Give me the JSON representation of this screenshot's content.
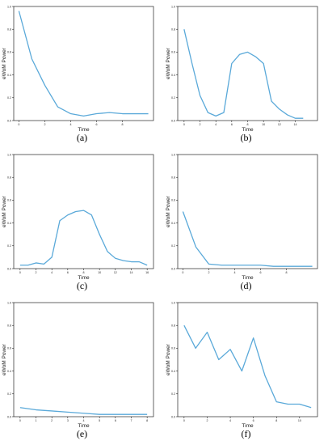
{
  "chart_data": [
    {
      "type": "line",
      "caption": "(a)",
      "xlabel": "Time",
      "ylabel": "eWoM Power",
      "xlim": [
        -0.4,
        10.4
      ],
      "ylim": [
        0,
        1.0
      ],
      "xticks": [
        0,
        2,
        4,
        6,
        8
      ],
      "xticklabels": [
        "0",
        "2",
        "4",
        "6",
        "8"
      ],
      "yticks": [
        0,
        0.2,
        0.4,
        0.6,
        0.8,
        1.0
      ],
      "yticklabels": [
        "0.0",
        "0.2",
        "0.4",
        "0.6",
        "0.8",
        "1.0"
      ],
      "series": [
        {
          "x": [
            0,
            1,
            2,
            3,
            4,
            5,
            6,
            7,
            8,
            9,
            10
          ],
          "y": [
            0.96,
            0.54,
            0.31,
            0.12,
            0.06,
            0.04,
            0.06,
            0.07,
            0.06,
            0.06,
            0.06
          ]
        }
      ]
    },
    {
      "type": "line",
      "caption": "(b)",
      "xlabel": "Time",
      "ylabel": "eWoM Power",
      "xlim": [
        -0.8,
        16.8
      ],
      "ylim": [
        0,
        1.0
      ],
      "xticks": [
        0,
        2,
        4,
        6,
        8,
        10,
        12,
        14
      ],
      "xticklabels": [
        "0",
        "2",
        "4",
        "6",
        "8",
        "10",
        "12",
        "14"
      ],
      "yticks": [
        0,
        0.2,
        0.4,
        0.6,
        0.8,
        1.0
      ],
      "yticklabels": [
        "0.0",
        "0.2",
        "0.4",
        "0.6",
        "0.8",
        "1.0"
      ],
      "series": [
        {
          "x": [
            0,
            1,
            2,
            3,
            4,
            5,
            6,
            7,
            8,
            9,
            10,
            11,
            12,
            13,
            14,
            15
          ],
          "y": [
            0.8,
            0.5,
            0.22,
            0.07,
            0.04,
            0.07,
            0.5,
            0.58,
            0.6,
            0.56,
            0.5,
            0.17,
            0.1,
            0.05,
            0.02,
            0.02
          ]
        }
      ]
    },
    {
      "type": "line",
      "caption": "(c)",
      "xlabel": "Time",
      "ylabel": "eWoM Power",
      "xlim": [
        -0.8,
        16.8
      ],
      "ylim": [
        0,
        1.0
      ],
      "xticks": [
        0,
        2,
        4,
        6,
        8,
        10,
        12,
        14,
        16
      ],
      "xticklabels": [
        "0",
        "2",
        "4",
        "6",
        "8",
        "10",
        "12",
        "14",
        "16"
      ],
      "yticks": [
        0,
        0.2,
        0.4,
        0.6,
        0.8,
        1.0
      ],
      "yticklabels": [
        "0.0",
        "0.2",
        "0.4",
        "0.6",
        "0.8",
        "1.0"
      ],
      "series": [
        {
          "x": [
            0,
            1,
            2,
            3,
            4,
            5,
            6,
            7,
            8,
            9,
            10,
            11,
            12,
            13,
            14,
            15,
            16
          ],
          "y": [
            0.03,
            0.03,
            0.05,
            0.04,
            0.1,
            0.42,
            0.47,
            0.5,
            0.51,
            0.47,
            0.3,
            0.15,
            0.09,
            0.07,
            0.06,
            0.06,
            0.03
          ]
        }
      ]
    },
    {
      "type": "line",
      "caption": "(d)",
      "xlabel": "Time",
      "ylabel": "eWoM Power",
      "xlim": [
        -0.4,
        10.4
      ],
      "ylim": [
        0,
        1.0
      ],
      "xticks": [
        0,
        2,
        4,
        6,
        8
      ],
      "xticklabels": [
        "0",
        "2",
        "4",
        "6",
        "8"
      ],
      "yticks": [
        0,
        0.2,
        0.4,
        0.6,
        0.8,
        1.0
      ],
      "yticklabels": [
        "0.0",
        "0.2",
        "0.4",
        "0.6",
        "0.8",
        "1.0"
      ],
      "series": [
        {
          "x": [
            0,
            1,
            2,
            3,
            4,
            5,
            6,
            7,
            8,
            9,
            10
          ],
          "y": [
            0.5,
            0.19,
            0.04,
            0.03,
            0.03,
            0.03,
            0.03,
            0.02,
            0.02,
            0.02,
            0.02
          ]
        }
      ]
    },
    {
      "type": "line",
      "caption": "(e)",
      "xlabel": "Time",
      "ylabel": "eWoM Power",
      "xlim": [
        -0.4,
        8.4
      ],
      "ylim": [
        0,
        1.0
      ],
      "xticks": [
        0,
        1,
        2,
        3,
        4,
        5,
        6,
        7,
        8
      ],
      "xticklabels": [
        "0",
        "1",
        "2",
        "3",
        "4",
        "5",
        "6",
        "7",
        "8"
      ],
      "yticks": [
        0,
        0.2,
        0.4,
        0.6,
        0.8,
        1.0
      ],
      "yticklabels": [
        "0.0",
        "0.2",
        "0.4",
        "0.6",
        "0.8",
        "1.0"
      ],
      "series": [
        {
          "x": [
            0,
            1,
            2,
            3,
            4,
            5,
            6,
            7,
            8
          ],
          "y": [
            0.08,
            0.06,
            0.05,
            0.04,
            0.03,
            0.02,
            0.02,
            0.02,
            0.02
          ]
        }
      ]
    },
    {
      "type": "line",
      "caption": "(f)",
      "xlabel": "Time",
      "ylabel": "eWoM Power",
      "xlim": [
        -0.55,
        11.55
      ],
      "ylim": [
        0,
        1.0
      ],
      "xticks": [
        0,
        2,
        4,
        6,
        8,
        10
      ],
      "xticklabels": [
        "0",
        "2",
        "4",
        "6",
        "8",
        "10"
      ],
      "yticks": [
        0,
        0.2,
        0.4,
        0.6,
        0.8,
        1.0
      ],
      "yticklabels": [
        "0.0",
        "0.2",
        "0.4",
        "0.6",
        "0.8",
        "1.0"
      ],
      "series": [
        {
          "x": [
            0,
            1,
            2,
            3,
            4,
            5,
            6,
            7,
            8,
            9,
            10,
            11
          ],
          "y": [
            0.8,
            0.6,
            0.74,
            0.5,
            0.59,
            0.4,
            0.69,
            0.36,
            0.13,
            0.11,
            0.11,
            0.08
          ]
        }
      ]
    }
  ]
}
